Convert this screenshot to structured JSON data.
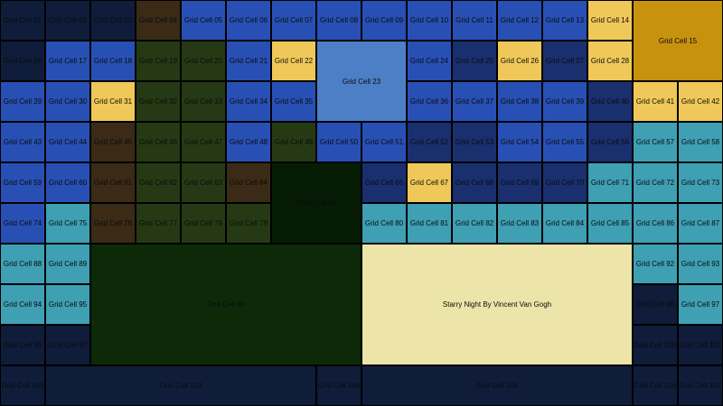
{
  "colors": {
    "navy": "#0f1c3a",
    "blue": "#2850b4",
    "mid_blue": "#2c4aa6",
    "dark_blue": "#1a2f6e",
    "light_blue": "#4d7fc7",
    "brown": "#3a2a16",
    "green": "#253a14",
    "dark_green": "#0c2a08",
    "deep_green": "#071c05",
    "yellow": "#f0c85a",
    "gold": "#c8920e",
    "teal": "#3f9fb3",
    "cream": "#ece4a8"
  },
  "cells": [
    {
      "label": "Grid Cell 01",
      "color": "navy"
    },
    {
      "label": "Grid Cell 02",
      "color": "navy"
    },
    {
      "label": "Grid Cell 03",
      "color": "navy"
    },
    {
      "label": "Grid Cell 04",
      "color": "brown"
    },
    {
      "label": "Grid Cell 05",
      "color": "blue"
    },
    {
      "label": "Grid Cell 06",
      "color": "blue"
    },
    {
      "label": "Grid Cell 07",
      "color": "blue"
    },
    {
      "label": "Grid Cell 08",
      "color": "blue"
    },
    {
      "label": "Grid Cell 09",
      "color": "blue"
    },
    {
      "label": "Grid Cell 10",
      "color": "blue"
    },
    {
      "label": "Grid Cell 11",
      "color": "blue"
    },
    {
      "label": "Grid Cell 12",
      "color": "blue"
    },
    {
      "label": "Grid Cell 13",
      "color": "blue"
    },
    {
      "label": "Grid Cell 14",
      "color": "yellow"
    },
    {
      "label": "Grid Cell 15",
      "color": "gold"
    },
    {
      "label": "Grid Cell 16",
      "color": "navy"
    },
    {
      "label": "Grid Cell 17",
      "color": "blue"
    },
    {
      "label": "Grid Cell 18",
      "color": "blue"
    },
    {
      "label": "Grid Cell 19",
      "color": "green"
    },
    {
      "label": "Grid Cell 20",
      "color": "green"
    },
    {
      "label": "Grid Cell 21",
      "color": "blue"
    },
    {
      "label": "Grid Cell 22",
      "color": "yellow"
    },
    {
      "label": "Grid Cell 23",
      "color": "light_blue"
    },
    {
      "label": "Grid Cell 24",
      "color": "blue"
    },
    {
      "label": "Grid Cell 25",
      "color": "dark_blue"
    },
    {
      "label": "Grid Cell 26",
      "color": "yellow"
    },
    {
      "label": "Grid Cell 27",
      "color": "dark_blue"
    },
    {
      "label": "Grid Cell 28",
      "color": "yellow"
    },
    {
      "label": "Grid Cell 29",
      "color": "blue"
    },
    {
      "label": "Grid Cell 30",
      "color": "blue"
    },
    {
      "label": "Grid Cell 31",
      "color": "yellow"
    },
    {
      "label": "Grid Cell 32",
      "color": "green"
    },
    {
      "label": "Grid Cell 33",
      "color": "green"
    },
    {
      "label": "Grid Cell 34",
      "color": "blue"
    },
    {
      "label": "Grid Cell 35",
      "color": "blue"
    },
    {
      "label": "Grid Cell 36",
      "color": "blue"
    },
    {
      "label": "Grid Cell 37",
      "color": "blue"
    },
    {
      "label": "Grid Cell 38",
      "color": "blue"
    },
    {
      "label": "Grid Cell 39",
      "color": "blue"
    },
    {
      "label": "Grid Cell 40",
      "color": "dark_blue"
    },
    {
      "label": "Grid Cell 41",
      "color": "yellow"
    },
    {
      "label": "Grid Cell 42",
      "color": "yellow"
    },
    {
      "label": "Grid Cell 43",
      "color": "blue"
    },
    {
      "label": "Grid Cell 44",
      "color": "blue"
    },
    {
      "label": "Grid Cell 45",
      "color": "brown"
    },
    {
      "label": "Grid Cell 46",
      "color": "green"
    },
    {
      "label": "Grid Cell 47",
      "color": "green"
    },
    {
      "label": "Grid Cell 48",
      "color": "blue"
    },
    {
      "label": "Grid Cell 49",
      "color": "green"
    },
    {
      "label": "Grid Cell 50",
      "color": "blue"
    },
    {
      "label": "Grid Cell 51",
      "color": "blue"
    },
    {
      "label": "Grid Cell 52",
      "color": "dark_blue"
    },
    {
      "label": "Grid Cell 53",
      "color": "dark_blue"
    },
    {
      "label": "Grid Cell 54",
      "color": "blue"
    },
    {
      "label": "Grid Cell 55",
      "color": "blue"
    },
    {
      "label": "Grid Cell 56",
      "color": "dark_blue"
    },
    {
      "label": "Grid Cell 57",
      "color": "teal"
    },
    {
      "label": "Grid Cell 58",
      "color": "teal"
    },
    {
      "label": "Grid Cell 59",
      "color": "blue"
    },
    {
      "label": "Grid Cell 60",
      "color": "blue"
    },
    {
      "label": "Grid Cell 61",
      "color": "brown"
    },
    {
      "label": "Grid Cell 62",
      "color": "green"
    },
    {
      "label": "Grid Cell 63",
      "color": "green"
    },
    {
      "label": "Grid Cell 64",
      "color": "brown"
    },
    {
      "label": "Grid Cell 65",
      "color": "deep_green"
    },
    {
      "label": "Grid Cell 66",
      "color": "dark_blue"
    },
    {
      "label": "Grid Cell 67",
      "color": "yellow"
    },
    {
      "label": "Grid Cell 68",
      "color": "dark_blue"
    },
    {
      "label": "Grid Cell 69",
      "color": "dark_blue"
    },
    {
      "label": "Grid Cell 70",
      "color": "dark_blue"
    },
    {
      "label": "Grid Cell 71",
      "color": "teal"
    },
    {
      "label": "Grid Cell 72",
      "color": "teal"
    },
    {
      "label": "Grid Cell 73",
      "color": "teal"
    },
    {
      "label": "Grid Cell 74",
      "color": "blue"
    },
    {
      "label": "Grid Cell 75",
      "color": "teal"
    },
    {
      "label": "Grid Cell 76",
      "color": "brown"
    },
    {
      "label": "Grid Cell 77",
      "color": "green"
    },
    {
      "label": "Grid Cell 78",
      "color": "green"
    },
    {
      "label": "Grid Cell 79",
      "color": "green"
    },
    {
      "label": "Grid Cell 80",
      "color": "teal"
    },
    {
      "label": "Grid Cell 81",
      "color": "teal"
    },
    {
      "label": "Grid Cell 82",
      "color": "teal"
    },
    {
      "label": "Grid Cell 83",
      "color": "teal"
    },
    {
      "label": "Grid Cell 84",
      "color": "teal"
    },
    {
      "label": "Grid Cell 85",
      "color": "teal"
    },
    {
      "label": "Grid Cell 86",
      "color": "teal"
    },
    {
      "label": "Grid Cell 87",
      "color": "teal"
    },
    {
      "label": "Grid Cell 88",
      "color": "teal"
    },
    {
      "label": "Grid Cell 89",
      "color": "teal"
    },
    {
      "label": "Grid Cell 90",
      "color": "dark_green"
    },
    {
      "label": "Starry Night By Vincent Van Gogh",
      "color": "cream"
    },
    {
      "label": "Grid Cell 92",
      "color": "teal"
    },
    {
      "label": "Grid Cell 93",
      "color": "teal"
    },
    {
      "label": "Grid Cell 94",
      "color": "teal"
    },
    {
      "label": "Grid Cell 95",
      "color": "teal"
    },
    {
      "label": "Grid Cell 96",
      "color": "navy"
    },
    {
      "label": "Grid Cell 97",
      "color": "teal"
    },
    {
      "label": "Grid Cell 98",
      "color": "navy"
    },
    {
      "label": "Grid Cell 99",
      "color": "navy"
    },
    {
      "label": "Grid Cell 100",
      "color": "navy"
    },
    {
      "label": "Grid Cell 101",
      "color": "navy"
    },
    {
      "label": "Grid Cell 102",
      "color": "navy"
    },
    {
      "label": "Grid Cell 103",
      "color": "navy"
    },
    {
      "label": "Grid Cell 104",
      "color": "navy"
    },
    {
      "label": "Grid Cell 105",
      "color": "navy"
    },
    {
      "label": "Grid Cell 106",
      "color": "navy"
    },
    {
      "label": "Grid Cell 107",
      "color": "navy"
    }
  ]
}
